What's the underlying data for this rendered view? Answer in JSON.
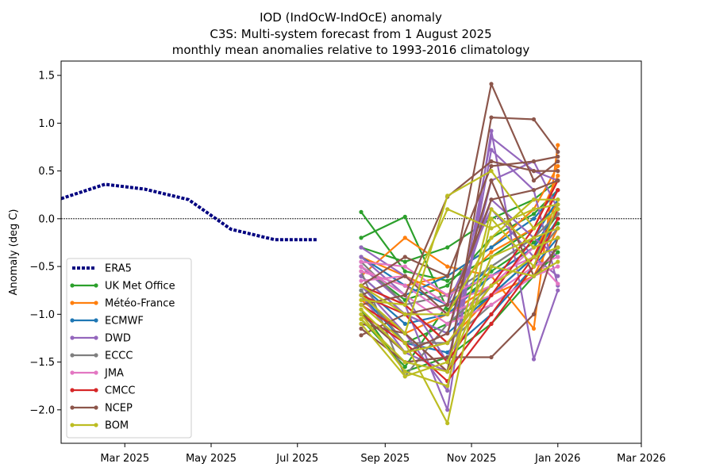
{
  "chart_data": {
    "type": "line",
    "title_lines": [
      "IOD (IndOcW-IndOcE) anomaly",
      "C3S: Multi-system forecast from 1 August 2025",
      "monthly mean anomalies relative to 1993-2016 climatology"
    ],
    "xlabel": "",
    "ylabel": "Anomaly (deg C)",
    "xlim": [
      "2025-01-15",
      "2026-03-01"
    ],
    "ylim": [
      -2.35,
      1.65
    ],
    "x_ticks": [
      {
        "date": "2025-03-01",
        "label": "Mar 2025"
      },
      {
        "date": "2025-05-01",
        "label": "May 2025"
      },
      {
        "date": "2025-07-01",
        "label": "Jul 2025"
      },
      {
        "date": "2025-09-01",
        "label": "Sep 2025"
      },
      {
        "date": "2025-11-01",
        "label": "Nov 2025"
      },
      {
        "date": "2026-01-01",
        "label": "Jan 2026"
      },
      {
        "date": "2026-03-01",
        "label": "Mar 2026"
      }
    ],
    "y_ticks": [
      {
        "value": 1.5,
        "label": "1.5"
      },
      {
        "value": 1.0,
        "label": "1.0"
      },
      {
        "value": 0.5,
        "label": "0.5"
      },
      {
        "value": 0.0,
        "label": "0.0"
      },
      {
        "value": -0.5,
        "label": "−0.5"
      },
      {
        "value": -1.0,
        "label": "−1.0"
      },
      {
        "value": -1.5,
        "label": "−1.5"
      },
      {
        "value": -2.0,
        "label": "−2.0"
      }
    ],
    "zero_line": true,
    "legend_placement": "lower-left",
    "observed": {
      "name": "ERA5",
      "color": "#000080",
      "style": "dotted",
      "x": [
        "2025-01-15",
        "2025-02-15",
        "2025-03-15",
        "2025-04-15",
        "2025-05-15",
        "2025-06-15",
        "2025-07-15"
      ],
      "y": [
        0.21,
        0.36,
        0.31,
        0.2,
        -0.11,
        -0.22,
        -0.22
      ]
    },
    "forecast_months": [
      "2025-08-15",
      "2025-09-15",
      "2025-10-15",
      "2025-11-15",
      "2025-12-15",
      "2026-01-01"
    ],
    "forecast_systems": [
      {
        "name": "UK Met Office",
        "color": "#2ca02c",
        "members": [
          [
            0.07,
            -0.55,
            -0.65,
            -0.4,
            -0.1,
            0.15
          ],
          [
            -0.2,
            0.02,
            -0.95,
            -0.6,
            -0.3,
            0.05
          ],
          [
            -0.75,
            -1.3,
            -1.1,
            -0.8,
            -0.4,
            -0.1
          ],
          [
            -0.95,
            -1.6,
            -1.45,
            -1.1,
            -0.6,
            -0.35
          ],
          [
            -0.5,
            -0.85,
            -0.7,
            -0.2,
            0.05,
            0.3
          ],
          [
            -0.3,
            -0.45,
            -0.3,
            0.0,
            0.2,
            0.4
          ],
          [
            -1.05,
            -1.55,
            -0.9,
            -0.55,
            -0.25,
            -0.05
          ]
        ]
      },
      {
        "name": "Météo-France",
        "color": "#ff7f0e",
        "members": [
          [
            -0.6,
            -0.2,
            -0.5,
            -0.6,
            -1.15,
            0.77
          ],
          [
            -0.4,
            -0.6,
            -0.8,
            -0.35,
            -0.1,
            0.45
          ],
          [
            -0.85,
            -1.2,
            -1.0,
            -0.7,
            -0.4,
            0.2
          ],
          [
            -0.7,
            -0.9,
            -1.3,
            -0.8,
            -0.6,
            -0.1
          ],
          [
            -0.55,
            -0.7,
            -0.6,
            -0.3,
            0.1,
            0.55
          ]
        ]
      },
      {
        "name": "ECMWF",
        "color": "#1f77b4",
        "members": [
          [
            -0.4,
            -0.7,
            -0.9,
            -0.5,
            -0.2,
            0.2
          ],
          [
            -0.6,
            -1.0,
            -1.2,
            -0.8,
            -0.4,
            0.0
          ],
          [
            -0.8,
            -1.3,
            -1.4,
            -1.0,
            -0.5,
            -0.2
          ],
          [
            -0.5,
            -0.8,
            -0.6,
            -0.3,
            0.0,
            0.3
          ],
          [
            -0.7,
            -1.1,
            -1.0,
            -0.6,
            -0.3,
            0.1
          ]
        ]
      },
      {
        "name": "DWD",
        "color": "#9467bd",
        "members": [
          [
            -0.5,
            -0.9,
            -2.0,
            0.92,
            -1.47,
            -0.75
          ],
          [
            -0.7,
            -1.2,
            -1.8,
            0.72,
            0.3,
            -0.7
          ],
          [
            -0.4,
            -0.8,
            -1.5,
            0.4,
            0.6,
            0.1
          ],
          [
            -0.6,
            -1.0,
            -1.2,
            0.2,
            -0.2,
            -0.4
          ],
          [
            -0.8,
            -1.4,
            -1.6,
            0.85,
            0.5,
            0.4
          ],
          [
            -0.3,
            -0.6,
            -0.9,
            0.1,
            -0.4,
            -0.6
          ]
        ]
      },
      {
        "name": "ECCC",
        "color": "#7f7f7f",
        "members": [
          [
            -0.55,
            -1.65,
            -1.1,
            -0.7,
            -0.4,
            -0.1
          ],
          [
            -0.75,
            -1.3,
            -1.3,
            -0.9,
            -0.6,
            -0.3
          ],
          [
            -0.45,
            -0.9,
            -0.8,
            -0.5,
            -0.2,
            0.05
          ]
        ]
      },
      {
        "name": "JMA",
        "color": "#e377c2",
        "members": [
          [
            -0.45,
            -0.5,
            -0.8,
            -0.6,
            -0.4,
            -0.68
          ],
          [
            -0.55,
            -0.7,
            -1.0,
            -0.8,
            -0.5,
            -0.4
          ],
          [
            -0.65,
            -0.6,
            -0.9,
            -0.7,
            -0.3,
            -0.2
          ],
          [
            -0.5,
            -0.8,
            -1.1,
            -0.9,
            -0.6,
            -0.5
          ]
        ]
      },
      {
        "name": "CMCC",
        "color": "#d62728",
        "members": [
          [
            -0.8,
            -1.0,
            -1.5,
            -0.8,
            -0.2,
            0.3
          ],
          [
            -0.9,
            -1.2,
            -1.6,
            -1.0,
            -0.4,
            0.1
          ],
          [
            -0.7,
            -0.9,
            -1.3,
            -0.7,
            -0.1,
            0.4
          ],
          [
            -1.0,
            -1.3,
            -1.7,
            -1.1,
            -0.5,
            0.0
          ]
        ]
      },
      {
        "name": "NCEP",
        "color": "#8c564b",
        "members": [
          [
            -1.22,
            -1.0,
            -0.9,
            1.41,
            0.4,
            0.6
          ],
          [
            -1.1,
            -1.2,
            -1.6,
            1.06,
            1.04,
            0.7
          ],
          [
            -0.9,
            -0.8,
            0.23,
            0.6,
            0.5,
            0.5
          ],
          [
            -1.0,
            -1.4,
            -1.2,
            0.4,
            -0.6,
            -0.3
          ],
          [
            -0.8,
            -0.6,
            -1.0,
            0.2,
            0.3,
            0.4
          ],
          [
            -1.15,
            -1.5,
            -1.45,
            -1.45,
            -1.0,
            -0.2
          ],
          [
            -0.7,
            -0.4,
            -0.6,
            0.55,
            0.6,
            0.65
          ]
        ]
      },
      {
        "name": "BOM",
        "color": "#bcbd22",
        "members": [
          [
            -0.9,
            -1.3,
            -2.14,
            0.0,
            -0.5,
            0.15
          ],
          [
            -1.0,
            -1.6,
            -1.75,
            0.1,
            -0.3,
            -0.2
          ],
          [
            -0.8,
            -1.2,
            0.24,
            0.5,
            -0.1,
            0.1
          ],
          [
            -1.1,
            -1.65,
            -1.5,
            -0.4,
            -0.2,
            -0.1
          ],
          [
            -0.7,
            -1.0,
            -1.0,
            -0.2,
            0.2,
            0.2
          ],
          [
            -0.95,
            -1.4,
            -1.3,
            -0.7,
            -0.4,
            -0.3
          ],
          [
            -0.85,
            -0.9,
            0.1,
            -0.1,
            0.1,
            0.15
          ],
          [
            -1.05,
            -1.5,
            -1.6,
            -0.5,
            -0.6,
            -0.45
          ]
        ]
      }
    ],
    "legend": [
      "ERA5",
      "UK Met Office",
      "Météo-France",
      "ECMWF",
      "DWD",
      "ECCC",
      "JMA",
      "CMCC",
      "NCEP",
      "BOM"
    ]
  }
}
